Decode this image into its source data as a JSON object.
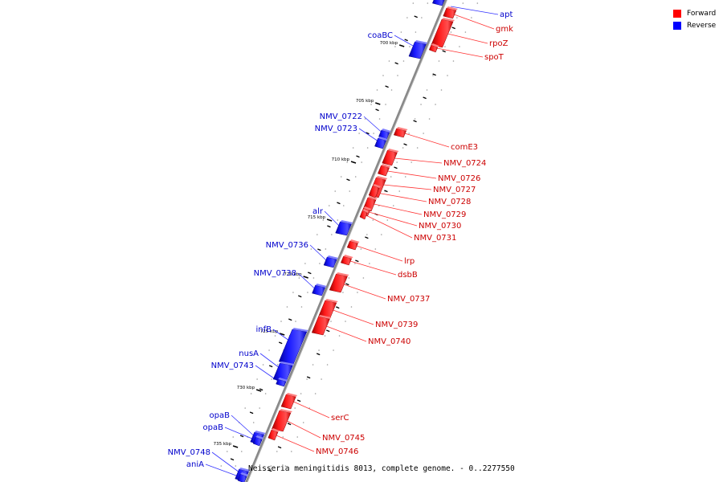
{
  "legend": {
    "forward_label": "Forward",
    "reverse_label": "Reverse",
    "forward_color": "#ff0000",
    "reverse_color": "#0000ff"
  },
  "caption": "Neisseria meningitidis 8013, complete genome. - 0..2277550",
  "scale_labels": [
    "700 kbp",
    "705 kbp",
    "710 kbp",
    "715 kbp",
    "720 kbp",
    "725 kbp",
    "730 kbp",
    "735 kbp"
  ],
  "forward_genes": [
    "gmk",
    "rpoZ",
    "spoT",
    "comE3",
    "NMV_0724",
    "NMV_0726",
    "NMV_0727",
    "NMV_0728",
    "NMV_0729",
    "NMV_0730",
    "NMV_0731",
    "lrp",
    "dsbB",
    "NMV_0737",
    "NMV_0739",
    "NMV_0740",
    "serC",
    "NMV_0745",
    "NMV_0746"
  ],
  "reverse_genes": [
    "apt",
    "coaBC",
    "NMV_0722",
    "NMV_0723",
    "alr",
    "NMV_0736",
    "NMV_0738",
    "infB",
    "nusA",
    "NMV_0743",
    "opaB",
    "opaB",
    "NMV_0748",
    "aniA"
  ]
}
